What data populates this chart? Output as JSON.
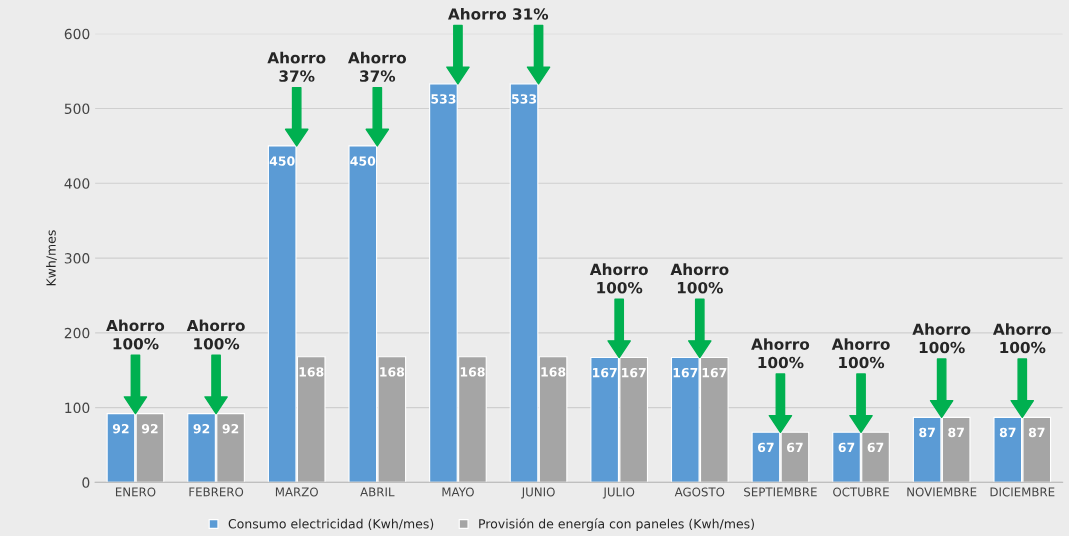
{
  "chart_data": {
    "type": "bar",
    "ylabel": "Kwh/mes",
    "categories": [
      "ENERO",
      "FEBRERO",
      "MARZO",
      "ABRIL",
      "MAYO",
      "JUNIO",
      "JULIO",
      "AGOSTO",
      "SEPTIEMBRE",
      "OCTUBRE",
      "NOVIEMBRE",
      "DICIEMBRE"
    ],
    "series": [
      {
        "name": "Consumo electricidad (Kwh/mes)",
        "color": "#5b9bd5",
        "values": [
          92,
          92,
          450,
          450,
          533,
          533,
          167,
          167,
          67,
          67,
          87,
          87
        ]
      },
      {
        "name": "Provisión de energía con paneles (Kwh/mes)",
        "color": "#a5a5a5",
        "values": [
          92,
          92,
          168,
          168,
          168,
          168,
          167,
          167,
          67,
          67,
          87,
          87
        ]
      }
    ],
    "ylim": [
      0,
      600
    ],
    "yticks": [
      0,
      100,
      200,
      300,
      400,
      500,
      600
    ],
    "grid": "y",
    "legend": "bottom",
    "data_labels": true,
    "annotations": [
      "Ahorro\n100%",
      "Ahorro\n100%",
      "Ahorro\n37%",
      "Ahorro\n37%",
      "Ahorro 31%",
      "Ahorro\n100%",
      "Ahorro\n100%",
      "Ahorro\n100%",
      "Ahorro\n100%",
      "Ahorro\n100%",
      "Ahorro\n100%"
    ]
  }
}
